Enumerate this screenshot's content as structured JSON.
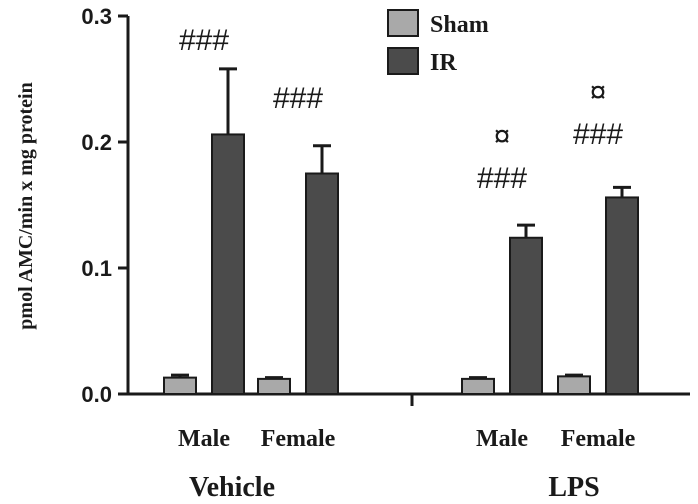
{
  "chart_data": {
    "type": "bar",
    "ylabel": "pmol AMC/min x mg protein",
    "ylim": [
      0,
      0.3
    ],
    "yticks": [
      "0.0",
      "0.1",
      "0.2",
      "0.3"
    ],
    "groups": [
      {
        "label": "Vehicle",
        "categories": [
          "Male",
          "Female"
        ]
      },
      {
        "label": "LPS",
        "categories": [
          "Male",
          "Female"
        ]
      }
    ],
    "series": [
      {
        "name": "Sham",
        "color": "#a9a9a9",
        "values": [
          0.013,
          0.012,
          0.012,
          0.014
        ],
        "errors": [
          0.002,
          0.001,
          0.001,
          0.001
        ]
      },
      {
        "name": "IR",
        "color": "#4b4b4b",
        "values": [
          0.206,
          0.175,
          0.124,
          0.156
        ],
        "errors": [
          0.052,
          0.022,
          0.01,
          0.008
        ]
      }
    ],
    "annotations": [
      {
        "category_index": 0,
        "lines": [
          "###"
        ]
      },
      {
        "category_index": 1,
        "lines": [
          "###"
        ]
      },
      {
        "category_index": 2,
        "lines": [
          "¤",
          "###"
        ]
      },
      {
        "category_index": 3,
        "lines": [
          "¤",
          "###"
        ]
      }
    ],
    "legend": {
      "position": "top-right"
    },
    "grid": false
  }
}
